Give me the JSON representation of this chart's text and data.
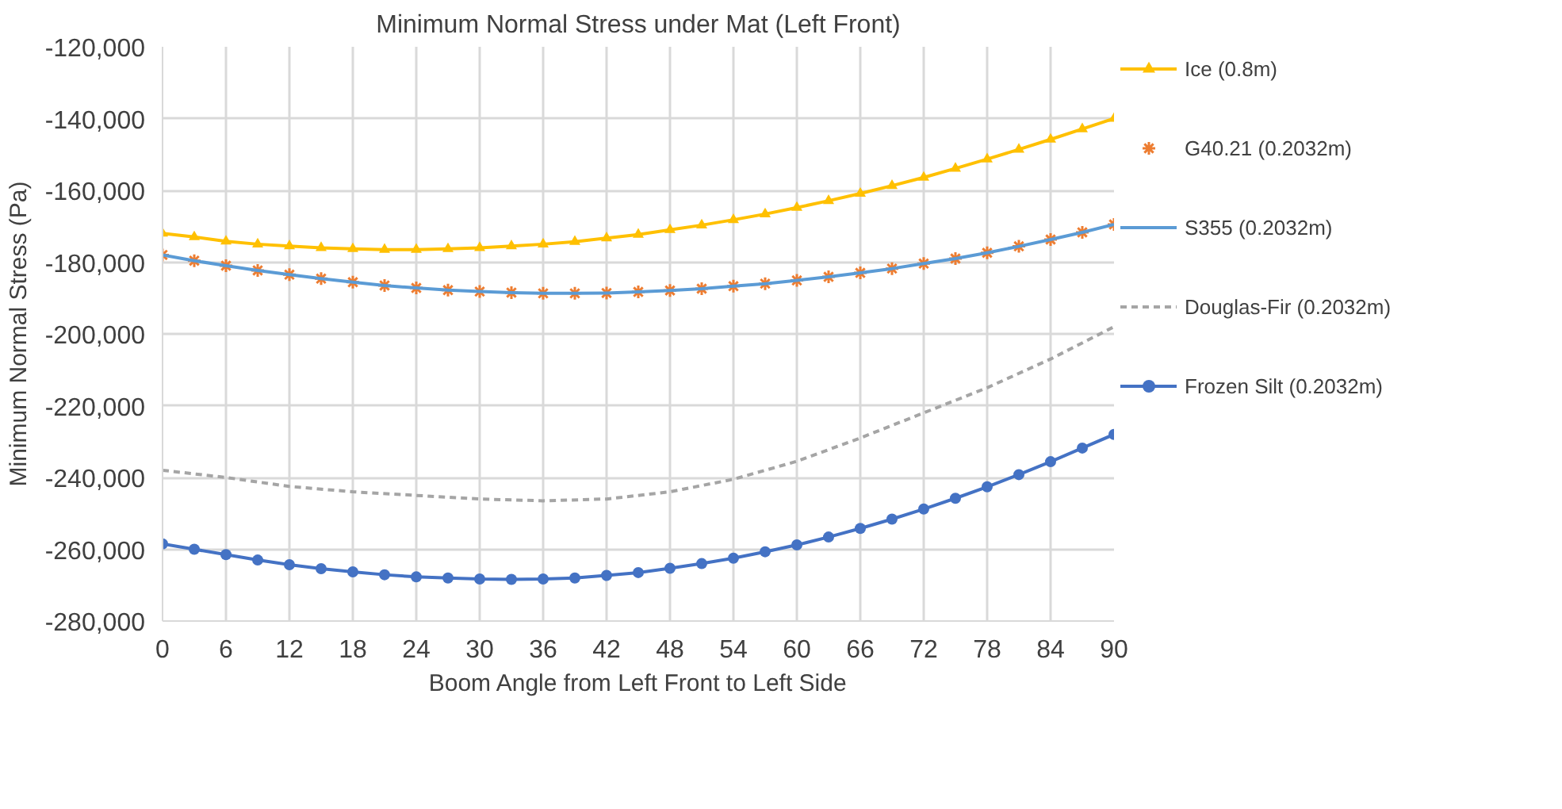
{
  "chart_data": {
    "type": "line",
    "title": "Minimum Normal Stress under Mat (Left Front)",
    "xlabel": "Boom Angle from Left Front to Left Side",
    "ylabel": "Minimum Normal Stress (Pa)",
    "xlim": [
      0,
      90
    ],
    "xticks": [
      0,
      6,
      12,
      18,
      24,
      30,
      36,
      42,
      48,
      54,
      60,
      66,
      72,
      78,
      84,
      90
    ],
    "ylim": [
      -280000,
      -120000
    ],
    "yticks": [
      {
        "value": -280000,
        "label": "-280,000"
      },
      {
        "value": -260000,
        "label": "-260,000"
      },
      {
        "value": -240000,
        "label": "-240,000"
      },
      {
        "value": -220000,
        "label": "-220,000"
      },
      {
        "value": -200000,
        "label": "-200,000"
      },
      {
        "value": -180000,
        "label": "-180,000"
      },
      {
        "value": -160000,
        "label": "-160,000"
      },
      {
        "value": -140000,
        "label": "-140,000"
      },
      {
        "value": -120000,
        "label": "-120,000"
      }
    ],
    "grid": true,
    "legend": "right",
    "x": [
      0,
      3,
      6,
      9,
      12,
      15,
      18,
      21,
      24,
      27,
      30,
      33,
      36,
      39,
      42,
      45,
      48,
      51,
      54,
      57,
      60,
      63,
      66,
      69,
      72,
      75,
      78,
      81,
      84,
      87,
      90
    ],
    "series": [
      {
        "name": "Ice (0.8m)",
        "color": "#ffc000",
        "marker": "triangle",
        "line_style": "solid",
        "values": [
          -172000,
          -173000,
          -174200,
          -175000,
          -175500,
          -176000,
          -176300,
          -176500,
          -176500,
          -176300,
          -176000,
          -175500,
          -175000,
          -174300,
          -173300,
          -172300,
          -171000,
          -169700,
          -168200,
          -166600,
          -164800,
          -162900,
          -160900,
          -158700,
          -156400,
          -153900,
          -151300,
          -148600,
          -145800,
          -142900,
          -140000
        ]
      },
      {
        "name": "G40.21 (0.2032m)",
        "type": "scatter",
        "color": "#ed7d31",
        "marker": "cross",
        "values": [
          -178000,
          -179600,
          -181000,
          -182300,
          -183500,
          -184600,
          -185600,
          -186500,
          -187200,
          -187800,
          -188200,
          -188500,
          -188700,
          -188700,
          -188600,
          -188300,
          -187900,
          -187400,
          -186700,
          -186000,
          -185100,
          -184100,
          -183000,
          -181800,
          -180400,
          -179000,
          -177400,
          -175600,
          -173700,
          -171700,
          -169500
        ]
      },
      {
        "name": "S355 (0.2032m)",
        "color": "#5b9bd5",
        "marker": "none",
        "line_style": "solid",
        "values": [
          -178000,
          -179600,
          -181000,
          -182300,
          -183500,
          -184600,
          -185600,
          -186500,
          -187200,
          -187800,
          -188200,
          -188500,
          -188700,
          -188700,
          -188600,
          -188300,
          -187900,
          -187400,
          -186700,
          -186000,
          -185100,
          -184100,
          -183000,
          -181800,
          -180400,
          -179000,
          -177400,
          -175600,
          -173700,
          -171700,
          -169500
        ]
      },
      {
        "name": "Douglas-Fir (0.2032m)",
        "color": "#a5a5a5",
        "marker": "none",
        "line_style": "dashed",
        "x": [
          0,
          6,
          12,
          18,
          24,
          30,
          36,
          42,
          48,
          54,
          60,
          66,
          72,
          78,
          84,
          90
        ],
        "values": [
          -238000,
          -240000,
          -242500,
          -244000,
          -245000,
          -246000,
          -246500,
          -246000,
          -244000,
          -240500,
          -235500,
          -229000,
          -222000,
          -215000,
          -207000,
          -198000
        ]
      },
      {
        "name": "Frozen Silt (0.2032m)",
        "color": "#4472c4",
        "marker": "circle",
        "line_style": "solid",
        "values": [
          -258500,
          -260000,
          -261500,
          -263000,
          -264300,
          -265400,
          -266300,
          -267100,
          -267700,
          -268000,
          -268300,
          -268400,
          -268300,
          -268000,
          -267300,
          -266500,
          -265300,
          -264000,
          -262500,
          -260700,
          -258800,
          -256600,
          -254200,
          -251600,
          -248800,
          -245800,
          -242600,
          -239200,
          -235600,
          -231800,
          -228000
        ]
      }
    ]
  }
}
